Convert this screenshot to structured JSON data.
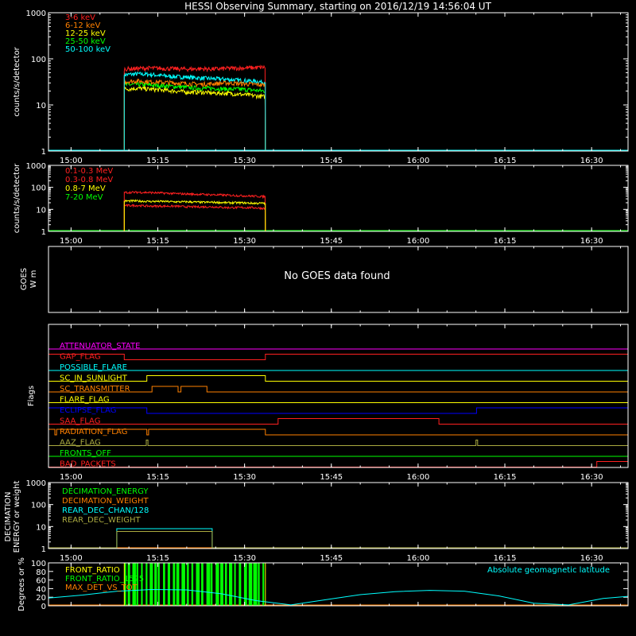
{
  "title": "HESSI Observing Summary, starting on 2016/12/19 14:56:04 UT",
  "colors": {
    "background": "#000000",
    "axes": "#ffffff",
    "red": "#ff2020",
    "orange": "#ff8000",
    "yellow": "#ffff00",
    "green": "#00ff00",
    "cyan": "#00ffff",
    "magenta": "#ff00ff",
    "blue": "#0000ff",
    "olive": "#aaaa40"
  },
  "time_axis": {
    "ticks": [
      "15:00",
      "15:15",
      "15:30",
      "15:45",
      "16:00",
      "16:15",
      "16:30"
    ],
    "tick_minutes": [
      0,
      15,
      30,
      45,
      60,
      75,
      90
    ],
    "xlim_minutes": [
      -3.9,
      96.3
    ],
    "unit": "minutes after 15:00 UT"
  },
  "chart_data": [
    {
      "type": "line",
      "panel": "count rates (low energy)",
      "ylabel": "counts/s/detector",
      "scale": "log",
      "ylim": [
        1,
        1000
      ],
      "yticks": [
        "1",
        "10",
        "100",
        "1000"
      ],
      "legend_position": "top-left",
      "x_on_start": 9.2,
      "x_off_start": 33.6,
      "x_on_end": 9.2,
      "x_off_end": 33.6,
      "series": [
        {
          "name": "3-6 keV",
          "color": "#ff2020",
          "values": [
            60,
            62,
            63,
            62,
            61,
            60,
            61,
            60,
            62,
            63,
            64,
            66
          ]
        },
        {
          "name": "6-12 keV",
          "color": "#ff8000",
          "values": [
            32,
            33,
            32,
            31,
            30,
            29,
            28,
            29,
            30,
            29,
            28,
            27
          ]
        },
        {
          "name": "12-25 keV",
          "color": "#ffff00",
          "values": [
            22,
            23,
            22,
            21,
            20,
            19,
            19,
            18,
            18,
            17,
            16,
            15
          ]
        },
        {
          "name": "25-50 keV",
          "color": "#00ff00",
          "values": [
            27,
            28,
            27,
            26,
            25,
            24,
            23,
            23,
            22,
            22,
            21,
            20
          ]
        },
        {
          "name": "50-100 keV",
          "color": "#00ffff",
          "values": [
            45,
            47,
            46,
            43,
            41,
            40,
            38,
            37,
            36,
            34,
            33,
            31
          ]
        }
      ]
    },
    {
      "type": "line",
      "panel": "count rates (high energy)",
      "ylabel": "counts/s/detector",
      "scale": "log",
      "ylim": [
        1,
        1000
      ],
      "yticks": [
        "1",
        "10",
        "100",
        "1000"
      ],
      "legend_position": "top-left",
      "x_on": 9.2,
      "x_off": 33.6,
      "series": [
        {
          "name": "0.1-0.3 MeV",
          "color": "#ff2020",
          "values": [
            58,
            60,
            58,
            55,
            52,
            50,
            48,
            46,
            44,
            42,
            40,
            38
          ]
        },
        {
          "name": "0.3-0.8 MeV",
          "color": "#ff2020",
          "values": [
            15,
            15,
            14,
            14,
            14,
            13,
            13,
            13,
            12,
            12,
            12,
            11
          ]
        },
        {
          "name": "0.8-7 MeV",
          "color": "#ffff00",
          "values": [
            24,
            24,
            23,
            23,
            22,
            22,
            21,
            21,
            20,
            20,
            19,
            19
          ]
        },
        {
          "name": "7-20 MeV",
          "color": "#00ff00",
          "values": [
            1,
            1,
            1,
            1,
            1,
            1,
            1,
            1,
            1,
            1,
            1,
            1
          ]
        }
      ]
    },
    {
      "type": "line",
      "panel": "GOES",
      "ylabel": "GOES",
      "ylabel_unit": "W m",
      "message": "No GOES data found"
    },
    {
      "type": "line",
      "panel": "flags",
      "ylabel": "Flags",
      "series": [
        {
          "name": "ATTENUATOR_STATE",
          "color": "#ff00ff",
          "high_intervals": []
        },
        {
          "name": "GAP_FLAG",
          "color": "#ff2020",
          "high_intervals": [
            [
              -3.9,
              9.2
            ],
            [
              33.6,
              96.3
            ]
          ]
        },
        {
          "name": "POSSIBLE_FLARE",
          "color": "#00ffff",
          "high_intervals": []
        },
        {
          "name": "SC_IN_SUNLIGHT",
          "color": "#ffff00",
          "high_intervals": [
            [
              13.1,
              33.6
            ]
          ]
        },
        {
          "name": "SC_TRANSMITTER",
          "color": "#ff8000",
          "high_intervals": [
            [
              14.0,
              18.5
            ],
            [
              19.0,
              23.5
            ]
          ]
        },
        {
          "name": "FLARE_FLAG",
          "color": "#ffff00",
          "high_intervals": []
        },
        {
          "name": "ECLIPSE_FLAG",
          "color": "#0000ff",
          "high_intervals": [
            [
              -3.9,
              13.1
            ],
            [
              70.1,
              96.3
            ]
          ]
        },
        {
          "name": "SAA_FLAG",
          "color": "#ff2020",
          "high_intervals": [
            [
              35.8,
              63.6
            ]
          ]
        },
        {
          "name": "RADIATION_FLAG",
          "color": "#ff8000",
          "high_intervals": [
            [
              -3.9,
              -2.8
            ],
            [
              -2.5,
              13.1
            ],
            [
              13.4,
              33.6
            ]
          ]
        },
        {
          "name": "AAZ_FLAG",
          "color": "#aaaa40",
          "high_intervals": [
            [
              13.0,
              13.3
            ],
            [
              70.0,
              70.3
            ]
          ]
        },
        {
          "name": "FRONTS_OFF",
          "color": "#00ff00",
          "high_intervals": []
        },
        {
          "name": "BAD_PACKETS",
          "color": "#ff2020",
          "high_intervals": [
            [
              90.9,
              96.3
            ]
          ]
        }
      ]
    },
    {
      "type": "line",
      "panel": "decimation",
      "ylabel": "DECIMATION",
      "ylabel_line2": "ENERGY or weight",
      "scale": "log",
      "ylim": [
        1,
        1000
      ],
      "yticks": [
        "1",
        "10",
        "100",
        "1000"
      ],
      "legend_position": "top-left",
      "series": [
        {
          "name": "DECIMATION_ENERGY",
          "color": "#00ff00",
          "steps": [
            [
              -3.9,
              1
            ],
            [
              96.3,
              1
            ]
          ]
        },
        {
          "name": "DECIMATION_WEIGHT",
          "color": "#ff8000",
          "steps": [
            [
              -3.9,
              1
            ],
            [
              96.3,
              1
            ]
          ]
        },
        {
          "name": "REAR_DEC_CHAN/128",
          "color": "#00ffff",
          "steps": [
            [
              -3.9,
              1
            ],
            [
              7.9,
              1
            ],
            [
              7.9,
              8
            ],
            [
              24.4,
              8
            ],
            [
              24.4,
              1
            ],
            [
              96.3,
              1
            ]
          ]
        },
        {
          "name": "REAR_DEC_WEIGHT",
          "color": "#aaaa40",
          "steps": [
            [
              -3.9,
              1
            ],
            [
              7.9,
              1
            ],
            [
              7.9,
              6
            ],
            [
              24.4,
              6
            ],
            [
              24.4,
              1
            ],
            [
              96.3,
              1
            ]
          ]
        }
      ]
    },
    {
      "type": "line",
      "panel": "ratios and latitude",
      "ylabel": "Degrees or %",
      "ylim": [
        0,
        100
      ],
      "yticks": [
        "0",
        "20",
        "40",
        "60",
        "80",
        "100"
      ],
      "legend_position": "top-left",
      "series": [
        {
          "name": "FRONT_RATIO",
          "color": "#ffff00"
        },
        {
          "name": "FRONT_RATIO_1525",
          "color": "#00ff00",
          "spike_times": [
            9.2,
            9.8,
            10.6,
            11.3,
            12.1,
            12.9,
            13.6,
            14.4,
            15.0,
            15.9,
            16.7,
            17.6,
            18.2,
            19.1,
            20.0,
            20.8,
            21.6,
            22.5,
            23.4,
            24.1,
            25.0,
            25.8,
            26.6,
            27.3,
            28.2,
            29.0,
            29.9,
            30.7,
            31.5,
            32.3,
            33.1
          ],
          "x_on": 9.2,
          "x_off": 33.6,
          "max_value": 100
        },
        {
          "name": "MAX_DET_VS_TOT",
          "color": "#ff8000",
          "values_flat": 0
        },
        {
          "name": "Absolute geomagnetic latitude",
          "color": "#00ffff",
          "x": [
            -3.9,
            2,
            8,
            14,
            20,
            26,
            32,
            38,
            44,
            50,
            56,
            62,
            68,
            74,
            80,
            86,
            92,
            96.3
          ],
          "values": [
            18,
            25,
            34,
            38,
            37,
            28,
            12,
            2,
            14,
            26,
            33,
            36,
            34,
            23,
            6,
            2,
            17,
            22
          ]
        }
      ]
    }
  ]
}
